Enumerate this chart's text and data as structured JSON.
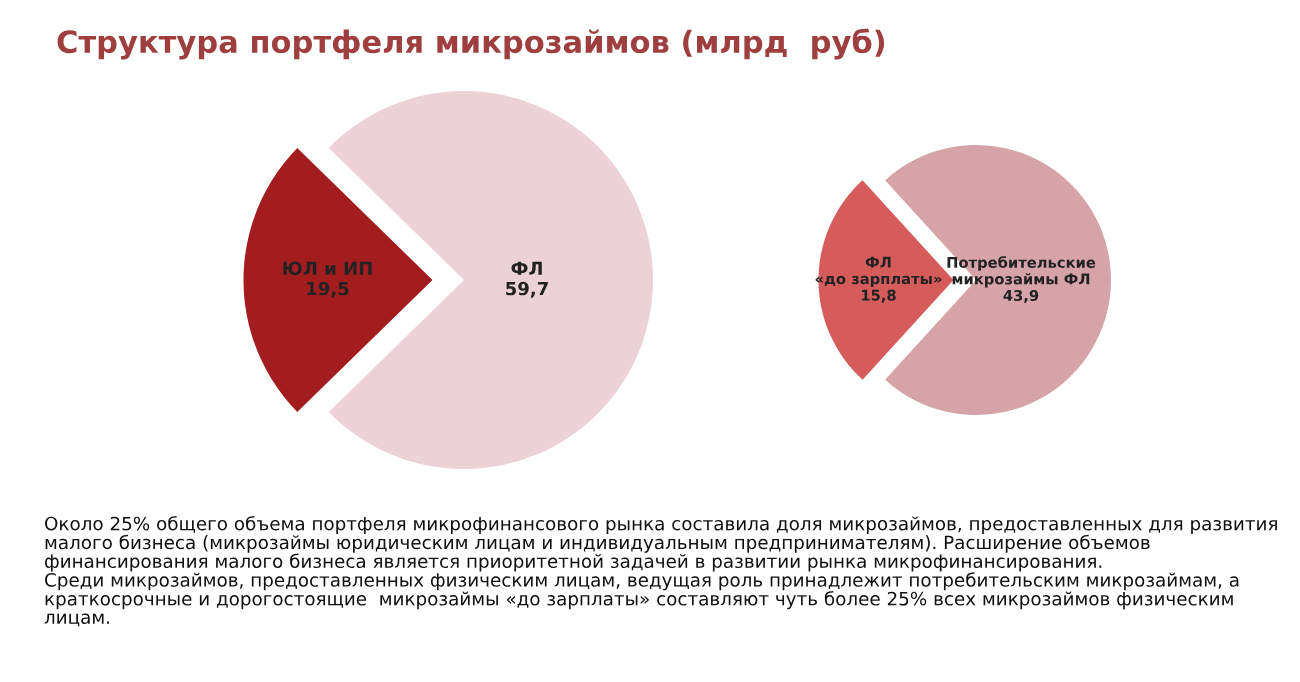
{
  "chart_data": [
    {
      "type": "pie",
      "title": "Структура портфеля микрозаймов (млрд  руб)",
      "categories": [
        "ЮЛ и ИП",
        "ФЛ"
      ],
      "values": [
        19.5,
        59.7
      ],
      "value_labels": [
        "19,5",
        "59,7"
      ],
      "colors": [
        "#a31d1f",
        "#ecd2d6"
      ],
      "annotations": [
        "Около 25% общего объема портфеля микрофинансового рынка составила доля микрозаймов, предоставленных для развития малого бизнеса (микрозаймы юридическим лицам и индивидуальным предпринимателям). Расширение объемов финансирования малого бизнеса является приоритетной задачей в развитии рынка микрофинансирования.",
        "Среди микрозаймов, предоставленных физическим лицам, ведущая роль принадлежит потребительским микрозаймам, а краткосрочные и дорогостоящие  микрозаймы «до зарплаты» составляют чуть более 25% всех микрозаймов физическим лицам."
      ]
    },
    {
      "type": "pie",
      "categories": [
        "ФЛ\n«до зарплаты»",
        "Потребительские\nмикрозаймы ФЛ"
      ],
      "values": [
        15.8,
        43.9
      ],
      "value_labels": [
        "15,8",
        "43,9"
      ],
      "colors": [
        "#d65c5c",
        "#d6a4a8"
      ]
    }
  ]
}
